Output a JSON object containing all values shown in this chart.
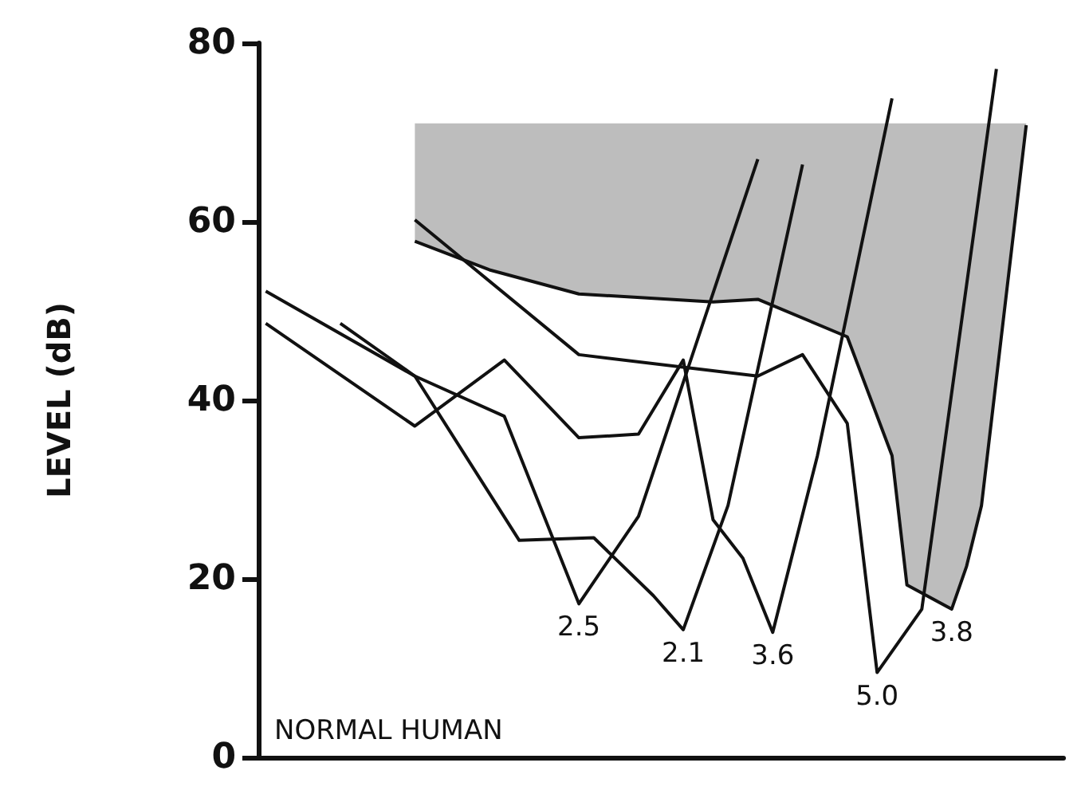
{
  "chart_data": {
    "type": "line",
    "ylabel": "LEVEL (dB)",
    "categories": [
      null,
      null,
      null,
      null,
      null,
      null,
      null,
      null,
      null,
      null,
      null,
      null,
      null,
      null,
      null,
      null,
      null,
      null,
      null,
      null,
      null,
      null,
      null,
      null,
      null,
      null,
      null,
      null,
      null,
      null,
      null,
      null,
      null,
      null,
      null,
      null,
      null,
      null,
      null,
      null,
      null,
      null,
      null,
      null,
      null,
      null,
      null,
      null,
      null,
      null,
      null,
      null,
      null,
      null
    ],
    "ylim": [
      0,
      80
    ],
    "yticks": [
      0,
      20,
      40,
      60,
      80
    ],
    "grid": false,
    "legend": false,
    "marker": "none",
    "line_style": "solid",
    "annotations": [
      "NORMAL HUMAN"
    ],
    "series": [
      {
        "name": "2.5",
        "color": "#111111",
        "values": [
          52.2,
          null,
          null,
          null,
          null,
          null,
          null,
          null,
          null,
          null,
          42.7,
          null,
          null,
          null,
          null,
          null,
          38.2,
          null,
          null,
          null,
          null,
          17.2,
          null,
          null,
          null,
          27.0,
          null,
          null,
          null,
          null,
          null,
          null,
          null,
          67.0,
          null,
          null,
          null,
          null,
          null,
          null,
          null,
          null,
          null,
          null,
          null,
          null,
          null,
          null,
          null,
          null,
          null,
          null,
          null,
          null
        ]
      },
      {
        "name": "2.1",
        "color": "#111111",
        "values": [
          null,
          null,
          null,
          null,
          null,
          48.6,
          null,
          null,
          null,
          null,
          42.7,
          null,
          null,
          null,
          null,
          null,
          null,
          24.3,
          null,
          null,
          null,
          null,
          24.6,
          null,
          null,
          null,
          18.1,
          null,
          14.3,
          null,
          null,
          28.2,
          null,
          null,
          null,
          null,
          66.4,
          null,
          null,
          null,
          null,
          null,
          null,
          null,
          null,
          null,
          null,
          null,
          null,
          null,
          null,
          null,
          null,
          null
        ]
      },
      {
        "name": "3.6",
        "color": "#111111",
        "values": [
          48.6,
          null,
          null,
          null,
          null,
          null,
          null,
          null,
          null,
          null,
          37.1,
          null,
          null,
          null,
          null,
          null,
          44.5,
          null,
          null,
          null,
          null,
          35.8,
          null,
          null,
          null,
          36.2,
          null,
          null,
          44.5,
          null,
          26.6,
          null,
          22.3,
          null,
          14.0,
          null,
          null,
          33.8,
          null,
          null,
          null,
          null,
          73.8,
          null,
          null,
          null,
          null,
          null,
          null,
          null,
          null,
          null,
          null,
          null
        ]
      },
      {
        "name": "5.0",
        "color": "#111111",
        "values": [
          null,
          null,
          null,
          null,
          null,
          null,
          null,
          null,
          null,
          null,
          60.2,
          null,
          null,
          null,
          null,
          null,
          null,
          null,
          null,
          null,
          null,
          45.1,
          null,
          null,
          null,
          null,
          null,
          null,
          null,
          null,
          null,
          null,
          null,
          42.7,
          null,
          null,
          45.1,
          null,
          null,
          37.4,
          null,
          9.5,
          null,
          null,
          16.6,
          null,
          null,
          null,
          null,
          77.1,
          null,
          null,
          null,
          null
        ]
      },
      {
        "name": "3.8",
        "color": "#111111",
        "values": [
          null,
          null,
          null,
          null,
          null,
          null,
          null,
          null,
          null,
          null,
          57.8,
          null,
          null,
          null,
          null,
          54.6,
          null,
          null,
          null,
          null,
          null,
          51.9,
          null,
          null,
          null,
          null,
          null,
          null,
          null,
          null,
          51.0,
          null,
          null,
          51.3,
          null,
          null,
          null,
          null,
          null,
          47.1,
          null,
          null,
          33.8,
          19.3,
          null,
          null,
          16.6,
          21.4,
          28.2,
          null,
          null,
          70.8,
          null,
          null
        ],
        "lower": [
          null,
          null,
          null,
          null,
          null,
          null,
          null,
          null,
          null,
          null,
          57.8,
          null,
          null,
          null,
          null,
          54.6,
          null,
          null,
          null,
          null,
          null,
          51.9,
          null,
          null,
          null,
          null,
          null,
          null,
          null,
          null,
          51.0,
          null,
          null,
          51.3,
          null,
          null,
          null,
          null,
          null,
          47.1,
          null,
          null,
          33.8,
          19.3,
          null,
          null,
          16.6,
          21.4,
          28.2,
          null,
          null,
          70.8,
          null,
          null
        ],
        "upper": [
          null,
          null,
          null,
          null,
          null,
          null,
          null,
          null,
          null,
          null,
          71,
          null,
          null,
          null,
          null,
          71,
          null,
          null,
          null,
          null,
          null,
          71,
          null,
          null,
          null,
          null,
          null,
          null,
          null,
          null,
          71,
          null,
          null,
          71,
          null,
          null,
          null,
          null,
          null,
          71,
          null,
          null,
          71,
          71,
          null,
          null,
          71,
          71,
          71,
          null,
          null,
          71,
          null,
          null
        ]
      }
    ]
  }
}
